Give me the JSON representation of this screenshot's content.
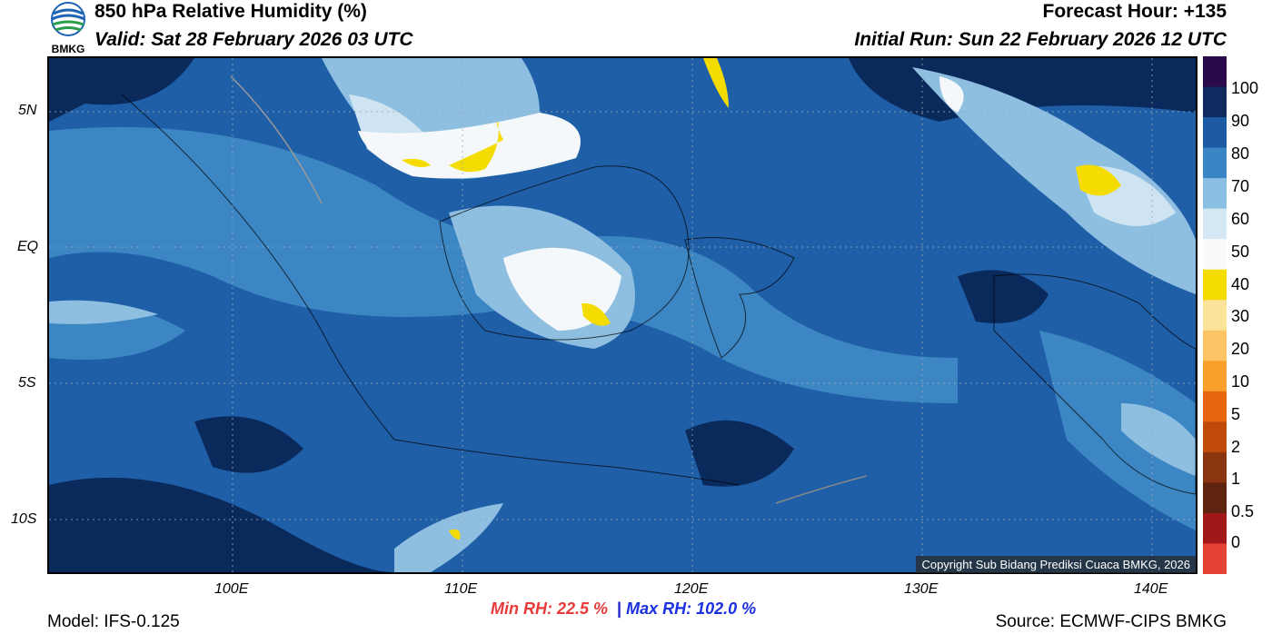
{
  "header": {
    "title": "850 hPa Relative Humidity (%)",
    "valid": "Valid: Sat 28 February 2026 03 UTC",
    "forecast_hour": "Forecast Hour: +135",
    "initial_run": "Initial Run: Sun 22 February 2026 12 UTC",
    "logo_text": "BMKG"
  },
  "map": {
    "lat_labels": [
      "5N",
      "EQ",
      "5S",
      "10S"
    ],
    "lon_labels": [
      "100E",
      "110E",
      "120E",
      "130E",
      "140E"
    ],
    "copyright": "Copyright Sub Bidang Prediksi Cuaca BMKG, 2026",
    "field_colors": {
      "very_moist": "#0b2a5c",
      "moist": "#1f5fa8",
      "mid": "#3c86c4",
      "light": "#8ebfe0",
      "lighter": "#cfe4f2",
      "near_white": "#f4f8fb",
      "dry_yellow": "#f5dc00"
    }
  },
  "colorbar": {
    "labels": [
      "100",
      "90",
      "80",
      "70",
      "60",
      "50",
      "40",
      "30",
      "20",
      "10",
      "5",
      "2",
      "1",
      "0.5",
      "0"
    ],
    "colors": [
      "#2b0a4a",
      "#0e2a5e",
      "#1d5aa6",
      "#3a86c4",
      "#8cc0e2",
      "#d4e8f4",
      "#fafafa",
      "#f5dc00",
      "#fce39a",
      "#fcc465",
      "#f8a02b",
      "#e5660f",
      "#bf4a0a",
      "#8a3510",
      "#5e2410",
      "#a01818",
      "#e34234"
    ]
  },
  "footer": {
    "model": "Model: IFS-0.125",
    "min_rh": "Min RH:  22.5 %",
    "separator": "|",
    "max_rh": "Max RH: 102.0 %",
    "source": "Source: ECMWF-CIPS BMKG"
  }
}
